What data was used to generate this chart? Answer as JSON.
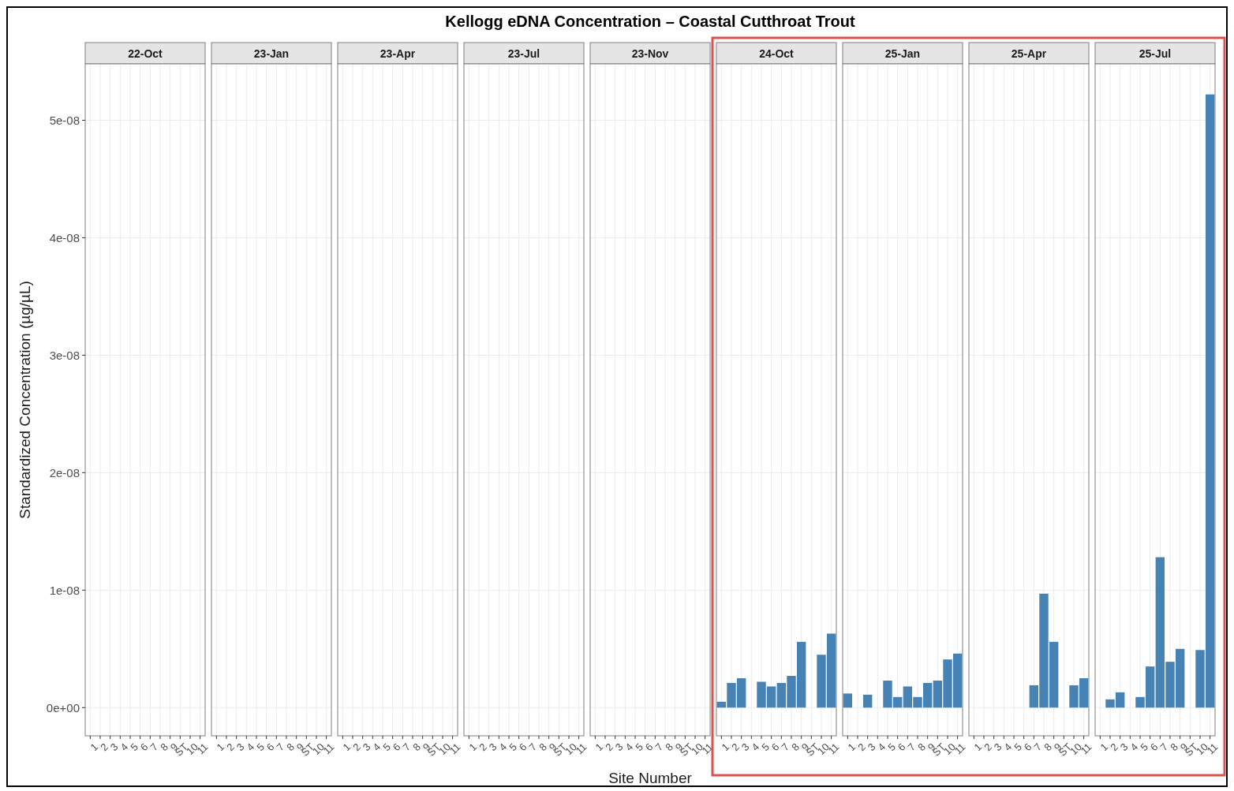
{
  "chart_data": [
    {
      "type": "bar",
      "title": "22-Oct",
      "ylabel": "Standardized Concentration (µg/µL)",
      "categories": [
        "1",
        "2",
        "3",
        "4",
        "5",
        "6",
        "7",
        "8",
        "9",
        "ST",
        "10",
        "11"
      ],
      "values": [
        null,
        null,
        null,
        null,
        null,
        null,
        null,
        null,
        null,
        null,
        null,
        null
      ],
      "color": "#4682b4",
      "ylim": [
        -2.4e-09,
        5.48e-08
      ],
      "yticks": [
        {
          "value": 0,
          "label": "0e+00"
        },
        {
          "value": 1e-08,
          "label": "1e-08"
        },
        {
          "value": 2e-08,
          "label": "2e-08"
        },
        {
          "value": 3e-08,
          "label": "3e-08"
        },
        {
          "value": 4e-08,
          "label": "4e-08"
        },
        {
          "value": 5e-08,
          "label": "5e-08"
        }
      ],
      "grid": true
    },
    {
      "type": "bar",
      "title": "23-Jan",
      "categories": [
        "1",
        "2",
        "3",
        "4",
        "5",
        "6",
        "7",
        "8",
        "9",
        "ST",
        "10",
        "11"
      ],
      "values": [
        null,
        null,
        null,
        null,
        null,
        null,
        null,
        null,
        null,
        null,
        null,
        null
      ],
      "color": "#4682b4",
      "ylim": [
        -2.4e-09,
        5.48e-08
      ],
      "yticks": [
        {
          "value": 0,
          "label": null
        },
        {
          "value": 1e-08,
          "label": null
        },
        {
          "value": 2e-08,
          "label": null
        },
        {
          "value": 3e-08,
          "label": null
        },
        {
          "value": 4e-08,
          "label": null
        },
        {
          "value": 5e-08,
          "label": null
        }
      ],
      "grid": true,
      "tick_labels": "x"
    },
    {
      "type": "bar",
      "title": "23-Apr",
      "categories": [
        "1",
        "2",
        "3",
        "4",
        "5",
        "6",
        "7",
        "8",
        "9",
        "ST",
        "10",
        "11"
      ],
      "values": [
        null,
        null,
        null,
        null,
        null,
        null,
        null,
        null,
        null,
        null,
        null,
        null
      ],
      "color": "#4682b4",
      "ylim": [
        -2.4e-09,
        5.48e-08
      ],
      "yticks": [
        {
          "value": 0,
          "label": null
        },
        {
          "value": 1e-08,
          "label": null
        },
        {
          "value": 2e-08,
          "label": null
        },
        {
          "value": 3e-08,
          "label": null
        },
        {
          "value": 4e-08,
          "label": null
        },
        {
          "value": 5e-08,
          "label": null
        }
      ],
      "grid": true,
      "tick_labels": "x"
    },
    {
      "type": "bar",
      "title": "23-Jul",
      "categories": [
        "1",
        "2",
        "3",
        "4",
        "5",
        "6",
        "7",
        "8",
        "9",
        "ST",
        "10",
        "11"
      ],
      "values": [
        null,
        null,
        null,
        null,
        null,
        null,
        null,
        null,
        null,
        null,
        null,
        null
      ],
      "color": "#4682b4",
      "ylim": [
        -2.4e-09,
        5.48e-08
      ],
      "yticks": [
        {
          "value": 0,
          "label": null
        },
        {
          "value": 1e-08,
          "label": null
        },
        {
          "value": 2e-08,
          "label": null
        },
        {
          "value": 3e-08,
          "label": null
        },
        {
          "value": 4e-08,
          "label": null
        },
        {
          "value": 5e-08,
          "label": null
        }
      ],
      "grid": true,
      "tick_labels": "x"
    },
    {
      "type": "bar",
      "title": "23-Nov",
      "xlabel": "Site Number",
      "annotations": [
        "Kellogg eDNA Concentration – Coastal Cutthroat Trout"
      ],
      "categories": [
        "1",
        "2",
        "3",
        "4",
        "5",
        "6",
        "7",
        "8",
        "9",
        "ST",
        "10",
        "11"
      ],
      "values": [
        null,
        null,
        null,
        null,
        null,
        null,
        null,
        null,
        null,
        null,
        null,
        null
      ],
      "color": "#4682b4",
      "ylim": [
        -2.4e-09,
        5.48e-08
      ],
      "yticks": [
        {
          "value": 0,
          "label": null
        },
        {
          "value": 1e-08,
          "label": null
        },
        {
          "value": 2e-08,
          "label": null
        },
        {
          "value": 3e-08,
          "label": null
        },
        {
          "value": 4e-08,
          "label": null
        },
        {
          "value": 5e-08,
          "label": null
        }
      ],
      "grid": true,
      "tick_labels": "x"
    },
    {
      "type": "bar",
      "title": "24-Oct",
      "categories": [
        "1",
        "2",
        "3",
        "4",
        "5",
        "6",
        "7",
        "8",
        "9",
        "ST",
        "10",
        "11"
      ],
      "values": [
        5e-10,
        2.1e-09,
        2.5e-09,
        null,
        2.2e-09,
        1.8e-09,
        2.1e-09,
        2.7e-09,
        5.6e-09,
        null,
        4.5e-09,
        6.3e-09
      ],
      "color": "#4682b4",
      "ylim": [
        -2.4e-09,
        5.48e-08
      ],
      "yticks": [
        {
          "value": 0,
          "label": null
        },
        {
          "value": 1e-08,
          "label": null
        },
        {
          "value": 2e-08,
          "label": null
        },
        {
          "value": 3e-08,
          "label": null
        },
        {
          "value": 4e-08,
          "label": null
        },
        {
          "value": 5e-08,
          "label": null
        }
      ],
      "grid": true,
      "tick_labels": "x"
    },
    {
      "type": "bar",
      "title": "25-Jan",
      "categories": [
        "1",
        "2",
        "3",
        "4",
        "5",
        "6",
        "7",
        "8",
        "9",
        "ST",
        "10",
        "11"
      ],
      "values": [
        1.2e-09,
        null,
        1.1e-09,
        null,
        2.3e-09,
        9e-10,
        1.8e-09,
        9e-10,
        2.1e-09,
        2.3e-09,
        4.1e-09,
        4.6e-09
      ],
      "color": "#4682b4",
      "ylim": [
        -2.4e-09,
        5.48e-08
      ],
      "yticks": [
        {
          "value": 0,
          "label": null
        },
        {
          "value": 1e-08,
          "label": null
        },
        {
          "value": 2e-08,
          "label": null
        },
        {
          "value": 3e-08,
          "label": null
        },
        {
          "value": 4e-08,
          "label": null
        },
        {
          "value": 5e-08,
          "label": null
        }
      ],
      "grid": true,
      "tick_labels": "x"
    },
    {
      "type": "bar",
      "title": "25-Apr",
      "categories": [
        "1",
        "2",
        "3",
        "4",
        "5",
        "6",
        "7",
        "8",
        "9",
        "ST",
        "10",
        "11"
      ],
      "values": [
        null,
        null,
        null,
        null,
        null,
        null,
        1.9e-09,
        9.7e-09,
        5.6e-09,
        null,
        1.9e-09,
        2.5e-09
      ],
      "color": "#4682b4",
      "ylim": [
        -2.4e-09,
        5.48e-08
      ],
      "yticks": [
        {
          "value": 0,
          "label": null
        },
        {
          "value": 1e-08,
          "label": null
        },
        {
          "value": 2e-08,
          "label": null
        },
        {
          "value": 3e-08,
          "label": null
        },
        {
          "value": 4e-08,
          "label": null
        },
        {
          "value": 5e-08,
          "label": null
        }
      ],
      "grid": true,
      "tick_labels": "x"
    },
    {
      "type": "bar",
      "title": "25-Jul",
      "categories": [
        "1",
        "2",
        "3",
        "4",
        "5",
        "6",
        "7",
        "8",
        "9",
        "ST",
        "10",
        "11"
      ],
      "values": [
        null,
        7e-10,
        1.3e-09,
        null,
        9e-10,
        3.5e-09,
        1.28e-08,
        3.9e-09,
        5e-09,
        null,
        4.9e-09,
        5.22e-08
      ],
      "color": "#4682b4",
      "ylim": [
        -2.4e-09,
        5.48e-08
      ],
      "yticks": [
        {
          "value": 0,
          "label": null
        },
        {
          "value": 1e-08,
          "label": null
        },
        {
          "value": 2e-08,
          "label": null
        },
        {
          "value": 3e-08,
          "label": null
        },
        {
          "value": 4e-08,
          "label": null
        },
        {
          "value": 5e-08,
          "label": null
        }
      ],
      "grid": true,
      "tick_labels": "x"
    }
  ]
}
